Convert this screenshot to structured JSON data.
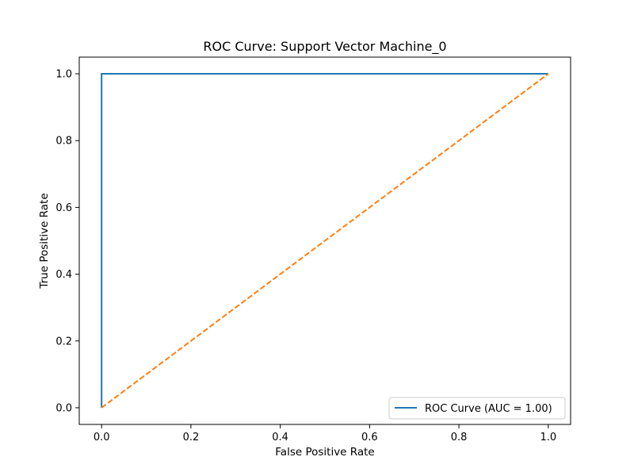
{
  "chart_data": {
    "type": "line",
    "title": "ROC Curve: Support Vector Machine_0",
    "xlabel": "False Positive Rate",
    "ylabel": "True Positive Rate",
    "xlim": [
      -0.05,
      1.05
    ],
    "ylim": [
      -0.05,
      1.05
    ],
    "xticks": [
      0.0,
      0.2,
      0.4,
      0.6,
      0.8,
      1.0
    ],
    "yticks": [
      0.0,
      0.2,
      0.4,
      0.6,
      0.8,
      1.0
    ],
    "xtick_labels": [
      "0.0",
      "0.2",
      "0.4",
      "0.6",
      "0.8",
      "1.0"
    ],
    "ytick_labels": [
      "0.0",
      "0.2",
      "0.4",
      "0.6",
      "0.8",
      "1.0"
    ],
    "grid": false,
    "legend_position": "lower-right",
    "series": [
      {
        "name": "ROC Curve (AUC = 1.00)",
        "color": "#1f77b4",
        "style": "solid",
        "x": [
          0.0,
          0.0,
          1.0
        ],
        "y": [
          0.0,
          1.0,
          1.0
        ]
      },
      {
        "color": "#ff7f0e",
        "style": "dashed",
        "x": [
          0.0,
          1.0
        ],
        "y": [
          0.0,
          1.0
        ]
      }
    ]
  }
}
